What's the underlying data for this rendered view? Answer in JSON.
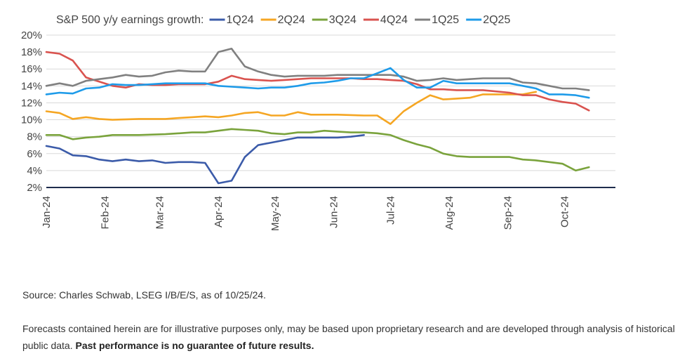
{
  "chart_data": {
    "type": "line",
    "legend_label": "S&P 500 y/y earnings growth:",
    "legend_placement": "top",
    "grid": true,
    "ylim": [
      2,
      20
    ],
    "y_ticks": [
      2,
      4,
      6,
      8,
      10,
      12,
      14,
      16,
      18,
      20
    ],
    "y_tick_labels": [
      "2%",
      "4%",
      "6%",
      "8%",
      "10%",
      "12%",
      "14%",
      "16%",
      "18%",
      "20%"
    ],
    "x_range": [
      "2024-01-01",
      "2024-10-28"
    ],
    "x_ticks": [
      "2024-01-01",
      "2024-02-01",
      "2024-03-01",
      "2024-04-01",
      "2024-05-01",
      "2024-06-01",
      "2024-07-01",
      "2024-08-01",
      "2024-09-01",
      "2024-10-01"
    ],
    "x_tick_labels": [
      "Jan-24",
      "Feb-24",
      "Mar-24",
      "Apr-24",
      "May-24",
      "Jun-24",
      "Jul-24",
      "Aug-24",
      "Sep-24",
      "Oct-24"
    ],
    "series": [
      {
        "name": "1Q24",
        "color": "#3b5ba9",
        "points": [
          [
            "2024-01-01",
            6.9
          ],
          [
            "2024-01-08",
            6.6
          ],
          [
            "2024-01-15",
            5.8
          ],
          [
            "2024-01-22",
            5.7
          ],
          [
            "2024-01-29",
            5.3
          ],
          [
            "2024-02-05",
            5.1
          ],
          [
            "2024-02-12",
            5.3
          ],
          [
            "2024-02-19",
            5.1
          ],
          [
            "2024-02-26",
            5.2
          ],
          [
            "2024-03-04",
            4.9
          ],
          [
            "2024-03-11",
            5.0
          ],
          [
            "2024-03-18",
            5.0
          ],
          [
            "2024-03-25",
            4.9
          ],
          [
            "2024-04-01",
            2.5
          ],
          [
            "2024-04-08",
            2.8
          ],
          [
            "2024-04-15",
            5.6
          ],
          [
            "2024-04-22",
            7.0
          ],
          [
            "2024-04-29",
            7.3
          ],
          [
            "2024-05-06",
            7.6
          ],
          [
            "2024-05-13",
            7.9
          ],
          [
            "2024-05-20",
            7.9
          ],
          [
            "2024-05-27",
            7.9
          ],
          [
            "2024-06-03",
            7.9
          ],
          [
            "2024-06-10",
            8.0
          ],
          [
            "2024-06-17",
            8.2
          ]
        ]
      },
      {
        "name": "2Q24",
        "color": "#f5a623",
        "points": [
          [
            "2024-01-01",
            11.0
          ],
          [
            "2024-01-08",
            10.8
          ],
          [
            "2024-01-15",
            10.1
          ],
          [
            "2024-01-22",
            10.3
          ],
          [
            "2024-01-29",
            10.1
          ],
          [
            "2024-02-05",
            10.0
          ],
          [
            "2024-02-19",
            10.1
          ],
          [
            "2024-03-04",
            10.1
          ],
          [
            "2024-03-11",
            10.2
          ],
          [
            "2024-03-18",
            10.3
          ],
          [
            "2024-03-25",
            10.4
          ],
          [
            "2024-04-01",
            10.3
          ],
          [
            "2024-04-08",
            10.5
          ],
          [
            "2024-04-15",
            10.8
          ],
          [
            "2024-04-22",
            10.9
          ],
          [
            "2024-04-29",
            10.5
          ],
          [
            "2024-05-06",
            10.5
          ],
          [
            "2024-05-13",
            10.9
          ],
          [
            "2024-05-20",
            10.6
          ],
          [
            "2024-06-03",
            10.6
          ],
          [
            "2024-06-17",
            10.5
          ],
          [
            "2024-06-24",
            10.5
          ],
          [
            "2024-07-01",
            9.5
          ],
          [
            "2024-07-08",
            11.0
          ],
          [
            "2024-07-15",
            12.0
          ],
          [
            "2024-07-22",
            12.9
          ],
          [
            "2024-07-29",
            12.4
          ],
          [
            "2024-08-05",
            12.5
          ],
          [
            "2024-08-12",
            12.6
          ],
          [
            "2024-08-19",
            13.0
          ],
          [
            "2024-09-02",
            13.0
          ],
          [
            "2024-09-09",
            13.0
          ],
          [
            "2024-09-16",
            13.3
          ]
        ]
      },
      {
        "name": "3Q24",
        "color": "#7aa33c",
        "points": [
          [
            "2024-01-01",
            8.2
          ],
          [
            "2024-01-08",
            8.2
          ],
          [
            "2024-01-15",
            7.7
          ],
          [
            "2024-01-22",
            7.9
          ],
          [
            "2024-01-29",
            8.0
          ],
          [
            "2024-02-05",
            8.2
          ],
          [
            "2024-02-19",
            8.2
          ],
          [
            "2024-03-04",
            8.3
          ],
          [
            "2024-03-18",
            8.5
          ],
          [
            "2024-03-25",
            8.5
          ],
          [
            "2024-04-01",
            8.7
          ],
          [
            "2024-04-08",
            8.9
          ],
          [
            "2024-04-15",
            8.8
          ],
          [
            "2024-04-22",
            8.7
          ],
          [
            "2024-04-29",
            8.4
          ],
          [
            "2024-05-06",
            8.3
          ],
          [
            "2024-05-13",
            8.5
          ],
          [
            "2024-05-20",
            8.5
          ],
          [
            "2024-05-27",
            8.7
          ],
          [
            "2024-06-03",
            8.6
          ],
          [
            "2024-06-10",
            8.5
          ],
          [
            "2024-06-17",
            8.5
          ],
          [
            "2024-06-24",
            8.4
          ],
          [
            "2024-07-01",
            8.2
          ],
          [
            "2024-07-08",
            7.6
          ],
          [
            "2024-07-15",
            7.1
          ],
          [
            "2024-07-22",
            6.7
          ],
          [
            "2024-07-29",
            6.0
          ],
          [
            "2024-08-05",
            5.7
          ],
          [
            "2024-08-12",
            5.6
          ],
          [
            "2024-08-19",
            5.6
          ],
          [
            "2024-09-02",
            5.6
          ],
          [
            "2024-09-09",
            5.3
          ],
          [
            "2024-09-16",
            5.2
          ],
          [
            "2024-09-23",
            5.0
          ],
          [
            "2024-09-30",
            4.8
          ],
          [
            "2024-10-07",
            4.0
          ],
          [
            "2024-10-14",
            4.4
          ]
        ]
      },
      {
        "name": "4Q24",
        "color": "#d9534f",
        "points": [
          [
            "2024-01-01",
            18.0
          ],
          [
            "2024-01-08",
            17.8
          ],
          [
            "2024-01-15",
            17.0
          ],
          [
            "2024-01-22",
            15.0
          ],
          [
            "2024-01-29",
            14.5
          ],
          [
            "2024-02-05",
            14.0
          ],
          [
            "2024-02-12",
            13.8
          ],
          [
            "2024-02-19",
            14.2
          ],
          [
            "2024-02-26",
            14.1
          ],
          [
            "2024-03-04",
            14.1
          ],
          [
            "2024-03-11",
            14.2
          ],
          [
            "2024-03-18",
            14.2
          ],
          [
            "2024-03-25",
            14.2
          ],
          [
            "2024-04-01",
            14.5
          ],
          [
            "2024-04-08",
            15.2
          ],
          [
            "2024-04-15",
            14.8
          ],
          [
            "2024-04-22",
            14.7
          ],
          [
            "2024-04-29",
            14.6
          ],
          [
            "2024-05-06",
            14.7
          ],
          [
            "2024-05-13",
            14.8
          ],
          [
            "2024-05-20",
            14.9
          ],
          [
            "2024-05-27",
            14.9
          ],
          [
            "2024-06-03",
            14.9
          ],
          [
            "2024-06-10",
            14.9
          ],
          [
            "2024-06-17",
            14.8
          ],
          [
            "2024-06-24",
            14.8
          ],
          [
            "2024-07-01",
            14.7
          ],
          [
            "2024-07-08",
            14.6
          ],
          [
            "2024-07-15",
            14.2
          ],
          [
            "2024-07-22",
            13.6
          ],
          [
            "2024-07-29",
            13.6
          ],
          [
            "2024-08-05",
            13.5
          ],
          [
            "2024-08-12",
            13.5
          ],
          [
            "2024-08-19",
            13.5
          ],
          [
            "2024-09-02",
            13.2
          ],
          [
            "2024-09-09",
            12.9
          ],
          [
            "2024-09-16",
            12.9
          ],
          [
            "2024-09-23",
            12.4
          ],
          [
            "2024-09-30",
            12.1
          ],
          [
            "2024-10-07",
            11.9
          ],
          [
            "2024-10-14",
            11.1
          ]
        ]
      },
      {
        "name": "1Q25",
        "color": "#808080",
        "points": [
          [
            "2024-01-01",
            14.0
          ],
          [
            "2024-01-08",
            14.3
          ],
          [
            "2024-01-15",
            14.0
          ],
          [
            "2024-01-22",
            14.6
          ],
          [
            "2024-01-29",
            14.8
          ],
          [
            "2024-02-05",
            15.0
          ],
          [
            "2024-02-12",
            15.3
          ],
          [
            "2024-02-19",
            15.1
          ],
          [
            "2024-02-26",
            15.2
          ],
          [
            "2024-03-04",
            15.6
          ],
          [
            "2024-03-11",
            15.8
          ],
          [
            "2024-03-18",
            15.7
          ],
          [
            "2024-03-25",
            15.7
          ],
          [
            "2024-04-01",
            18.0
          ],
          [
            "2024-04-08",
            18.4
          ],
          [
            "2024-04-15",
            16.3
          ],
          [
            "2024-04-22",
            15.7
          ],
          [
            "2024-04-29",
            15.3
          ],
          [
            "2024-05-06",
            15.1
          ],
          [
            "2024-05-13",
            15.2
          ],
          [
            "2024-05-20",
            15.2
          ],
          [
            "2024-05-27",
            15.2
          ],
          [
            "2024-06-03",
            15.3
          ],
          [
            "2024-06-10",
            15.3
          ],
          [
            "2024-06-17",
            15.3
          ],
          [
            "2024-06-24",
            15.3
          ],
          [
            "2024-07-01",
            15.3
          ],
          [
            "2024-07-08",
            15.1
          ],
          [
            "2024-07-15",
            14.6
          ],
          [
            "2024-07-22",
            14.7
          ],
          [
            "2024-07-29",
            14.9
          ],
          [
            "2024-08-05",
            14.7
          ],
          [
            "2024-08-12",
            14.8
          ],
          [
            "2024-08-19",
            14.9
          ],
          [
            "2024-09-02",
            14.9
          ],
          [
            "2024-09-09",
            14.4
          ],
          [
            "2024-09-16",
            14.3
          ],
          [
            "2024-09-23",
            14.0
          ],
          [
            "2024-09-30",
            13.7
          ],
          [
            "2024-10-07",
            13.7
          ],
          [
            "2024-10-14",
            13.5
          ]
        ]
      },
      {
        "name": "2Q25",
        "color": "#1e9be9",
        "points": [
          [
            "2024-01-01",
            13.0
          ],
          [
            "2024-01-08",
            13.2
          ],
          [
            "2024-01-15",
            13.1
          ],
          [
            "2024-01-22",
            13.7
          ],
          [
            "2024-01-29",
            13.8
          ],
          [
            "2024-02-05",
            14.2
          ],
          [
            "2024-02-12",
            14.1
          ],
          [
            "2024-02-19",
            14.1
          ],
          [
            "2024-02-26",
            14.2
          ],
          [
            "2024-03-04",
            14.3
          ],
          [
            "2024-03-11",
            14.3
          ],
          [
            "2024-03-18",
            14.3
          ],
          [
            "2024-03-25",
            14.3
          ],
          [
            "2024-04-01",
            14.0
          ],
          [
            "2024-04-08",
            13.9
          ],
          [
            "2024-04-15",
            13.8
          ],
          [
            "2024-04-22",
            13.7
          ],
          [
            "2024-04-29",
            13.8
          ],
          [
            "2024-05-06",
            13.8
          ],
          [
            "2024-05-13",
            14.0
          ],
          [
            "2024-05-20",
            14.3
          ],
          [
            "2024-05-27",
            14.4
          ],
          [
            "2024-06-03",
            14.6
          ],
          [
            "2024-06-10",
            14.9
          ],
          [
            "2024-06-17",
            14.9
          ],
          [
            "2024-06-24",
            15.5
          ],
          [
            "2024-07-01",
            16.1
          ],
          [
            "2024-07-08",
            14.7
          ],
          [
            "2024-07-15",
            13.8
          ],
          [
            "2024-07-22",
            13.8
          ],
          [
            "2024-07-29",
            14.6
          ],
          [
            "2024-08-05",
            14.3
          ],
          [
            "2024-08-12",
            14.3
          ],
          [
            "2024-08-19",
            14.3
          ],
          [
            "2024-09-02",
            14.3
          ],
          [
            "2024-09-09",
            14.0
          ],
          [
            "2024-09-16",
            13.7
          ],
          [
            "2024-09-23",
            13.0
          ],
          [
            "2024-09-30",
            13.0
          ],
          [
            "2024-10-07",
            12.9
          ],
          [
            "2024-10-14",
            12.6
          ]
        ]
      }
    ]
  },
  "footer": {
    "source": "Source: Charles Schwab, LSEG I/B/E/S, as of 10/25/24.",
    "disclaimer": "Forecasts contained herein are for illustrative purposes only, may be based upon proprietary research and are developed through analysis of historical public data.",
    "disclaimer_bold": "Past performance is no guarantee of future results."
  }
}
